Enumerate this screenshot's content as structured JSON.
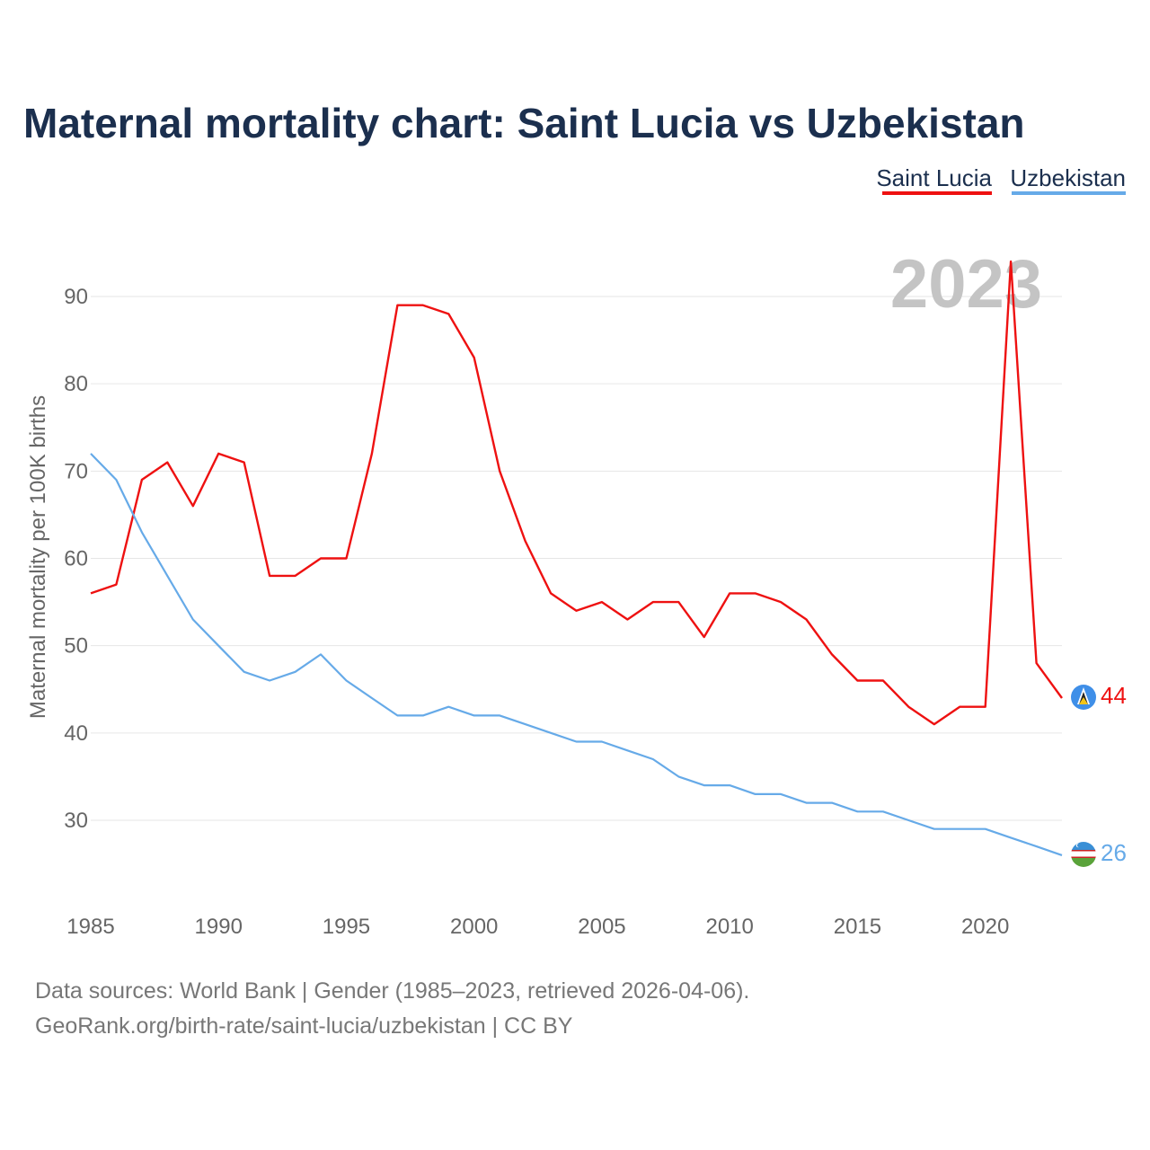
{
  "chart_data": {
    "type": "line",
    "title": "Maternal mortality chart: Saint Lucia vs Uzbekistan",
    "ylabel": "Maternal mortality per 100K births",
    "xlabel": "",
    "year_label": "2023",
    "xlim": [
      1985,
      2023
    ],
    "ylim": [
      22,
      97
    ],
    "x_ticks": [
      1985,
      1990,
      1995,
      2000,
      2005,
      2010,
      2015,
      2020
    ],
    "y_ticks": [
      30,
      40,
      50,
      60,
      70,
      80,
      90
    ],
    "x": [
      1985,
      1986,
      1987,
      1988,
      1989,
      1990,
      1991,
      1992,
      1993,
      1994,
      1995,
      1996,
      1997,
      1998,
      1999,
      2000,
      2001,
      2002,
      2003,
      2004,
      2005,
      2006,
      2007,
      2008,
      2009,
      2010,
      2011,
      2012,
      2013,
      2014,
      2015,
      2016,
      2017,
      2018,
      2019,
      2020,
      2021,
      2022,
      2023
    ],
    "series": [
      {
        "name": "Saint Lucia",
        "color": "#ee1111",
        "end_label": "44",
        "values": [
          56,
          57,
          69,
          71,
          66,
          72,
          71,
          58,
          58,
          60,
          60,
          72,
          89,
          89,
          88,
          83,
          70,
          62,
          56,
          54,
          55,
          53,
          55,
          55,
          51,
          56,
          56,
          55,
          53,
          49,
          46,
          46,
          43,
          41,
          43,
          43,
          94,
          48,
          44
        ]
      },
      {
        "name": "Uzbekistan",
        "color": "#66aae8",
        "end_label": "26",
        "values": [
          72,
          69,
          63,
          58,
          53,
          50,
          47,
          46,
          47,
          49,
          46,
          44,
          42,
          42,
          43,
          42,
          42,
          41,
          40,
          39,
          39,
          38,
          37,
          35,
          34,
          34,
          33,
          33,
          32,
          32,
          31,
          31,
          30,
          29,
          29,
          29,
          28,
          27,
          26
        ]
      }
    ],
    "legend": {
      "position": "top-right",
      "items": [
        "Saint Lucia",
        "Uzbekistan"
      ]
    },
    "grid": true
  },
  "footer": {
    "source_line": "Data sources: World Bank | Gender (1985–2023, retrieved 2026-04-06).",
    "credit_line": "GeoRank.org/birth-rate/saint-lucia/uzbekistan | CC BY"
  }
}
